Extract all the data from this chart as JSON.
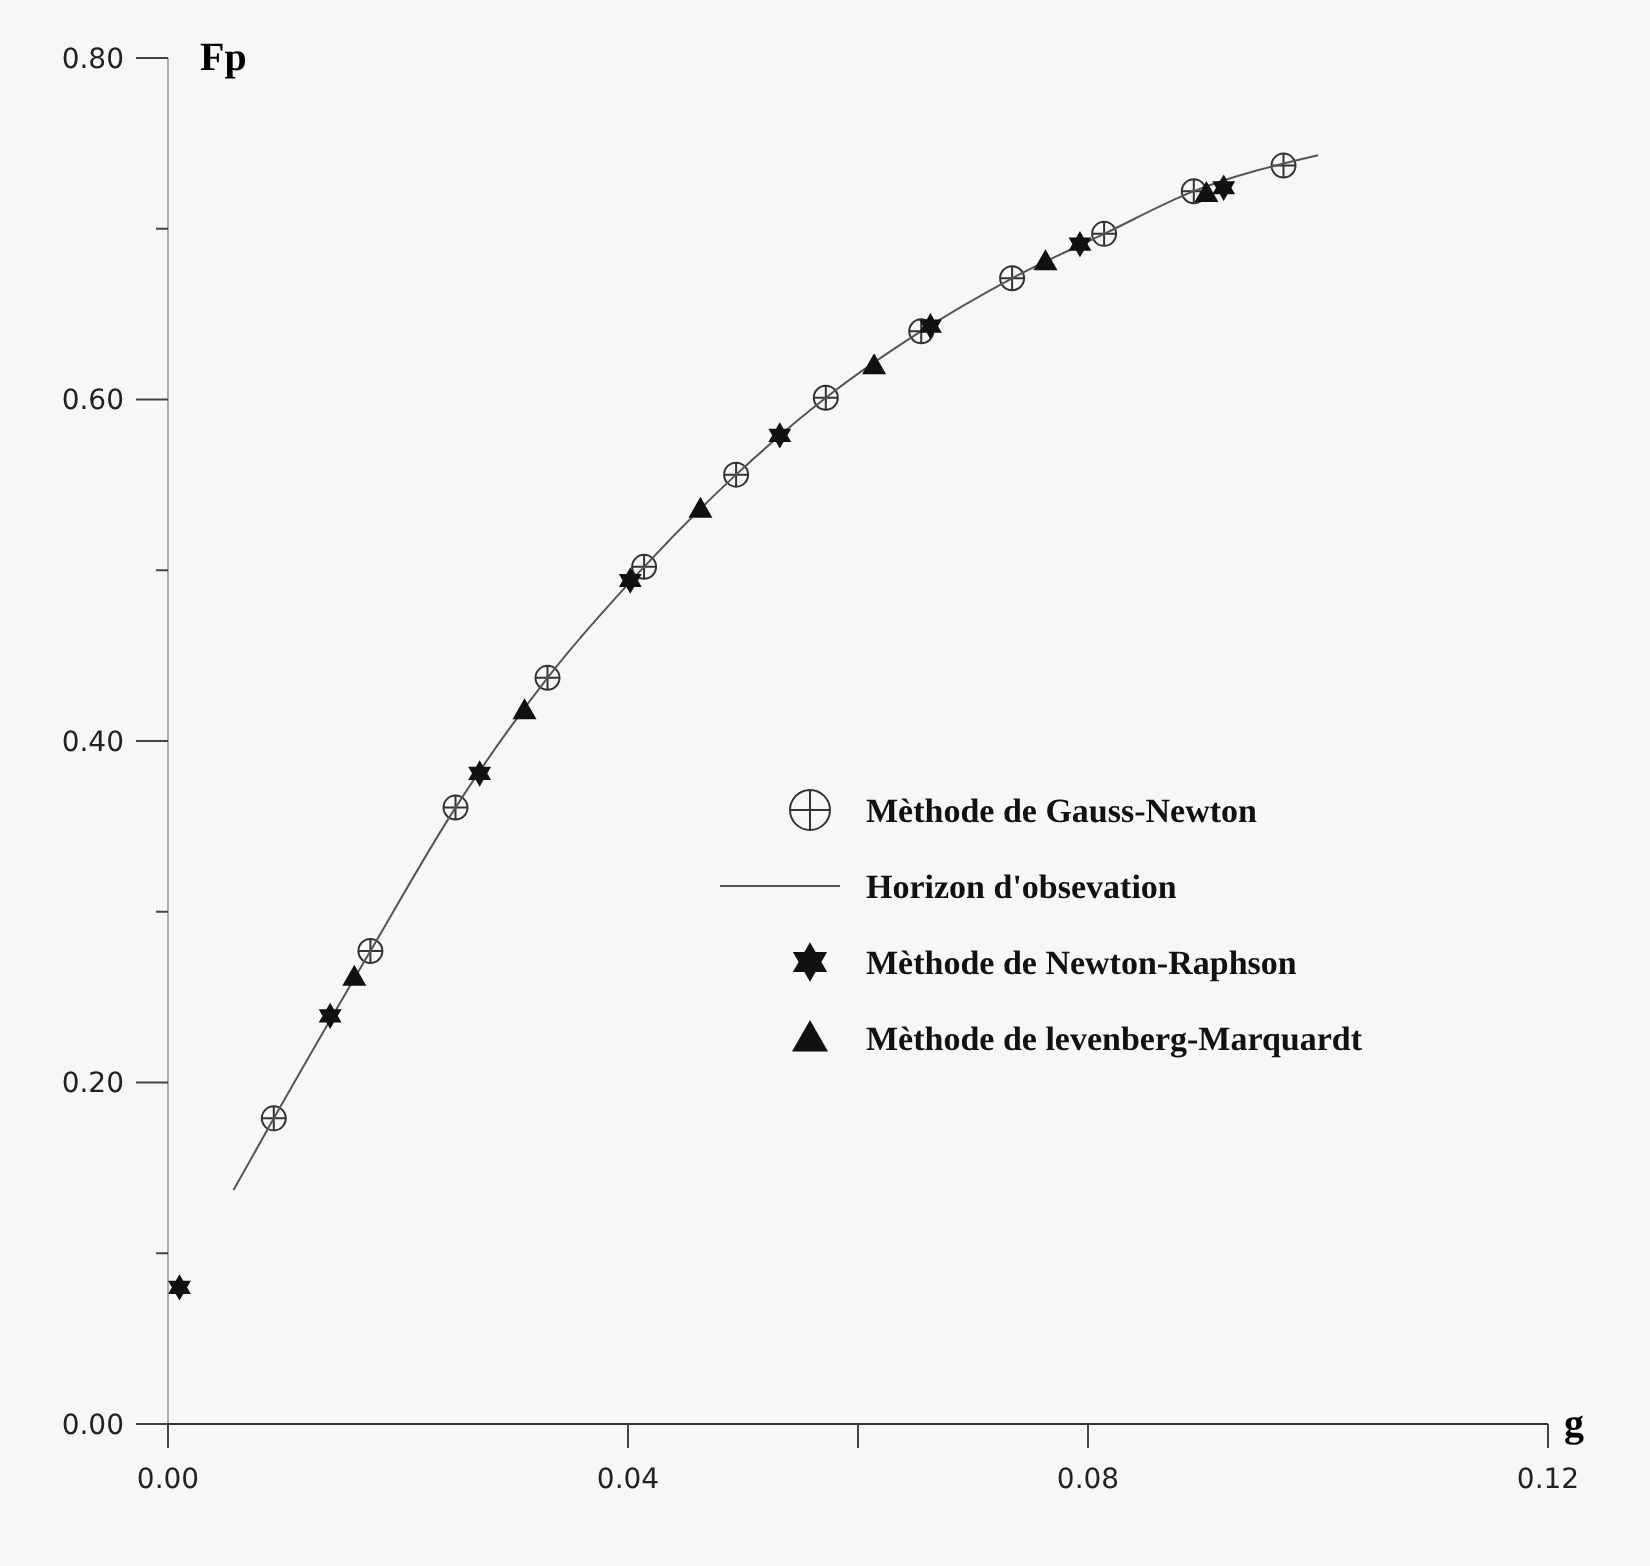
{
  "chart_data": {
    "type": "scatter",
    "xlabel": "g",
    "ylabel": "Fp",
    "xlim": [
      0,
      0.12
    ],
    "ylim": [
      0,
      0.8
    ],
    "xticks": [
      {
        "value": 0,
        "label": "0.00"
      },
      {
        "value": 0.04,
        "label": "0.04"
      },
      {
        "value": 0.06,
        "label": null
      },
      {
        "value": 0.08,
        "label": "0.08"
      },
      {
        "value": 0.12,
        "label": "0.12"
      }
    ],
    "yticks": [
      {
        "value": 0,
        "label": "0.00"
      },
      {
        "value": 0.1,
        "label": null
      },
      {
        "value": 0.2,
        "label": "0.20"
      },
      {
        "value": 0.3,
        "label": null
      },
      {
        "value": 0.4,
        "label": "0.40"
      },
      {
        "value": 0.5,
        "label": null
      },
      {
        "value": 0.6,
        "label": "0.60"
      },
      {
        "value": 0.7,
        "label": null
      },
      {
        "value": 0.8,
        "label": "0.80"
      }
    ],
    "grid": false,
    "legend": "right",
    "series": [
      {
        "name": "Mèthode de Gauss-Newton",
        "marker": "cross",
        "color": "#333333",
        "x": [
          0.0092,
          0.0176,
          0.025,
          0.033,
          0.0414,
          0.0494,
          0.0572,
          0.0655,
          0.0734,
          0.0814,
          0.0892,
          0.097
        ],
        "values": [
          0.179,
          0.277,
          0.361,
          0.437,
          0.502,
          0.556,
          0.601,
          0.64,
          0.671,
          0.697,
          0.722,
          0.737
        ]
      },
      {
        "name": "Horizon d'obsevation",
        "type": "line",
        "color": "#555555",
        "x": [
          0.0057,
          0.0092,
          0.0176,
          0.025,
          0.033,
          0.0414,
          0.0494,
          0.0572,
          0.0655,
          0.0734,
          0.0814,
          0.0892,
          0.1
        ],
        "values": [
          0.137,
          0.179,
          0.277,
          0.361,
          0.437,
          0.502,
          0.556,
          0.601,
          0.64,
          0.671,
          0.697,
          0.722,
          0.743
        ]
      },
      {
        "name": "Mèthode de Newton-Raphson",
        "marker": "star",
        "color": "#111111",
        "x": [
          0.001,
          0.0141,
          0.0271,
          0.0402,
          0.0532,
          0.0663,
          0.0793,
          0.0918
        ],
        "values": [
          0.08,
          0.239,
          0.381,
          0.494,
          0.579,
          0.643,
          0.691,
          0.724
        ]
      },
      {
        "name": "Mèthode de levenberg-Marquardt",
        "marker": "triangle",
        "color": "#111111",
        "x": [
          0.0162,
          0.031,
          0.0463,
          0.0614,
          0.0763,
          0.0903
        ],
        "values": [
          0.262,
          0.418,
          0.536,
          0.62,
          0.681,
          0.721
        ]
      }
    ]
  }
}
